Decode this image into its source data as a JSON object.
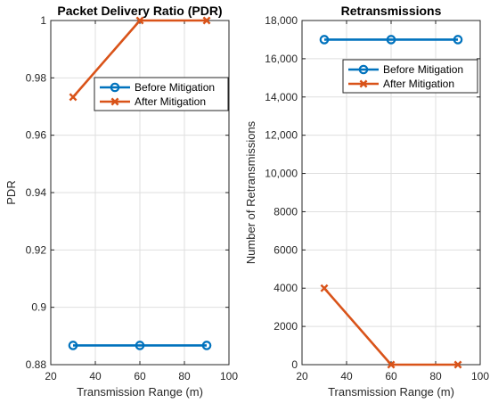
{
  "chart_data": [
    {
      "type": "line",
      "title": "Packet Delivery Ratio (PDR)",
      "xlabel": "Transmission Range (m)",
      "ylabel": "PDR",
      "xlim": [
        20,
        100
      ],
      "ylim": [
        0.88,
        1.0
      ],
      "xticks": [
        20,
        40,
        60,
        80,
        100
      ],
      "xtick_labels": [
        "20",
        "40",
        "60",
        "80",
        "100"
      ],
      "yticks": [
        0.88,
        0.9,
        0.92,
        0.94,
        0.96,
        0.98,
        1.0
      ],
      "ytick_labels": [
        "0.88",
        "0.9",
        "0.92",
        "0.94",
        "0.96",
        "0.98",
        "1"
      ],
      "grid": true,
      "legend_position": "top-right",
      "x": [
        30,
        60,
        90
      ],
      "series": [
        {
          "name": "Before Mitigation",
          "values": [
            0.8867,
            0.8867,
            0.8867
          ],
          "color": "#0072BD",
          "marker": "circle"
        },
        {
          "name": "After Mitigation",
          "values": [
            0.9733,
            1.0,
            1.0
          ],
          "color": "#D95319",
          "marker": "x"
        }
      ]
    },
    {
      "type": "line",
      "title": "Retransmissions",
      "xlabel": "Transmission Range (m)",
      "ylabel": "Number of Retransmissions",
      "xlim": [
        20,
        100
      ],
      "ylim": [
        0,
        18000
      ],
      "xticks": [
        20,
        40,
        60,
        80,
        100
      ],
      "xtick_labels": [
        "20",
        "40",
        "60",
        "80",
        "100"
      ],
      "yticks": [
        0,
        2000,
        4000,
        6000,
        8000,
        10000,
        12000,
        14000,
        16000,
        18000
      ],
      "ytick_labels": [
        "0",
        "2000",
        "4000",
        "6000",
        "8000",
        "10,000",
        "12,000",
        "14,000",
        "16,000",
        "18,000"
      ],
      "grid": true,
      "legend_position": "top-right",
      "x": [
        30,
        60,
        90
      ],
      "series": [
        {
          "name": "Before Mitigation",
          "values": [
            17000,
            17000,
            17000
          ],
          "color": "#0072BD",
          "marker": "circle"
        },
        {
          "name": "After Mitigation",
          "values": [
            4000,
            0,
            0
          ],
          "color": "#D95319",
          "marker": "x"
        }
      ]
    }
  ]
}
